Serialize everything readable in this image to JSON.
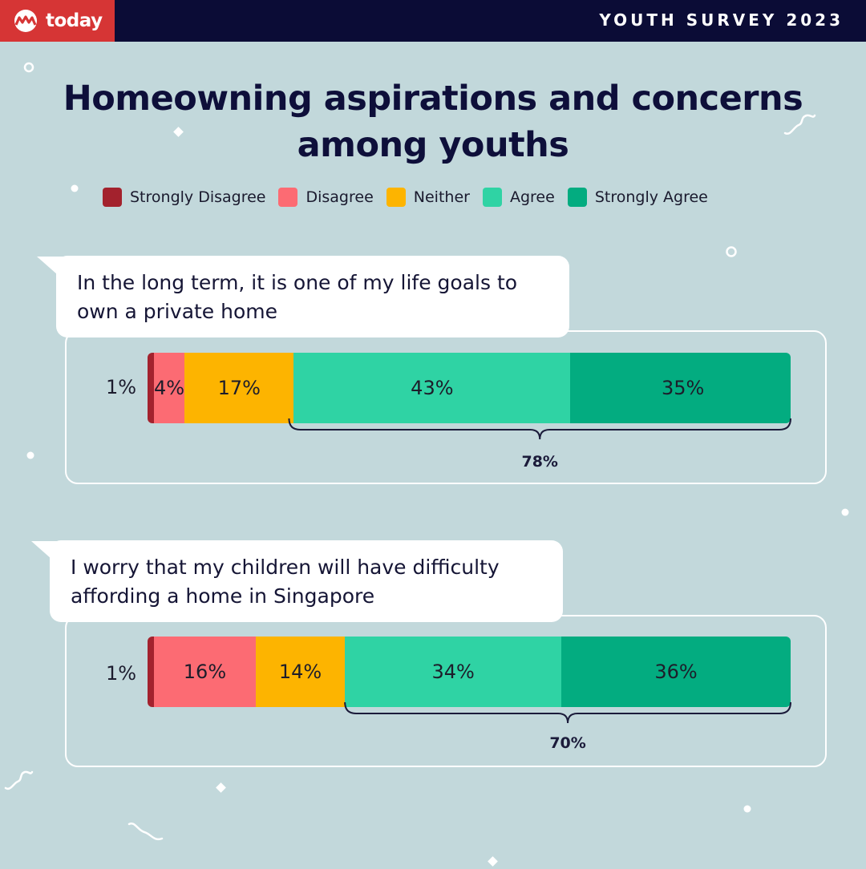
{
  "header": {
    "brand": "today",
    "survey_title": "YOUTH SURVEY 2023"
  },
  "colors": {
    "strongly_disagree": "#a3222d",
    "disagree": "#fc6b73",
    "neither": "#fdb400",
    "agree": "#2fd3a4",
    "strongly_agree": "#03ac80"
  },
  "chart_data": {
    "type": "bar",
    "orientation": "horizontal-stacked",
    "title": "Homeowning aspirations and concerns among youths",
    "legend": [
      "Strongly Disagree",
      "Disagree",
      "Neither",
      "Agree",
      "Strongly Agree"
    ],
    "unit": "%",
    "questions": [
      {
        "statement": "In the long term, it is one of my life goals to own a private home",
        "values": [
          1,
          4,
          17,
          43,
          35
        ],
        "labels": [
          "1%",
          "4%",
          "17%",
          "43%",
          "35%"
        ],
        "agree_total": 78,
        "agree_total_label": "78%"
      },
      {
        "statement": "I worry that my children will have difficulty affording a home in Singapore",
        "values": [
          1,
          16,
          14,
          34,
          36
        ],
        "labels": [
          "1%",
          "16%",
          "14%",
          "34%",
          "36%"
        ],
        "agree_total": 70,
        "agree_total_label": "70%"
      }
    ]
  }
}
